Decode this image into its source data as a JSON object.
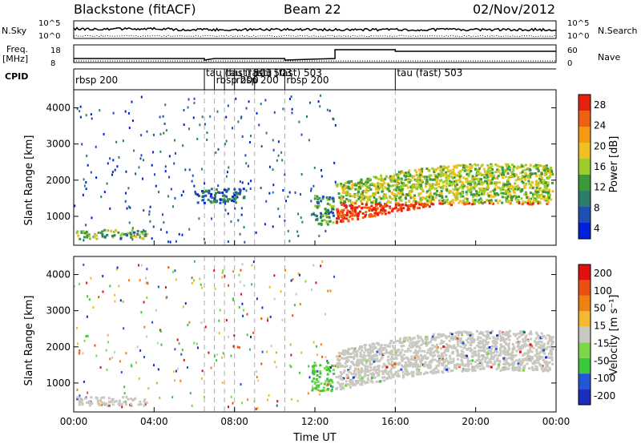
{
  "header": {
    "station": "Blackstone (fitACF)",
    "beam": "Beam 22",
    "date": "02/Nov/2012"
  },
  "strip_labels": {
    "nsky": "N.Sky",
    "nsearch": "N.Search",
    "freq": "Freq.",
    "freq_unit": "[MHz]",
    "nave": "Nave",
    "cpid": "CPID",
    "nsky_ticks": [
      "10^5",
      "10^0"
    ],
    "freq_ticks": [
      "18",
      "8"
    ],
    "nave_ticks": [
      "60",
      "0"
    ]
  },
  "cpid_segments": [
    {
      "label": "rbsp 200",
      "hour": 0.0
    },
    {
      "label": "tau (fast) 503",
      "hour": 6.5
    },
    {
      "label": "rbsp 200",
      "hour": 7.0
    },
    {
      "label": "tau (fast) 503",
      "hour": 7.5
    },
    {
      "label": "rbsp 200",
      "hour": 8.0
    },
    {
      "label": "tau (fast) 503",
      "hour": 9.0
    },
    {
      "label": "rbsp 200",
      "hour": 10.5
    },
    {
      "label": "tau (fast) 503",
      "hour": 16.0
    }
  ],
  "colors": {
    "power": [
      "#0022dd",
      "#1f4fb3",
      "#2e7d6b",
      "#3a9a3a",
      "#9ccc2a",
      "#f0c020",
      "#f59a10",
      "#f06010",
      "#e82010"
    ],
    "velocity": [
      "#1a2ec0",
      "#2456d8",
      "#3cc83c",
      "#7cd84a",
      "#c8c8c0",
      "#f5b830",
      "#f08010",
      "#ec5010",
      "#e01010"
    ],
    "velocity_ground": "#c8c8c0"
  },
  "chart_data": [
    {
      "type": "heatmap",
      "title": "Blackstone (fitACF)",
      "xlabel": "Time UT",
      "ylabel": "Slant Range [km]",
      "xlim": [
        0,
        24
      ],
      "ylim": [
        200,
        4500
      ],
      "x_tick_labels": [
        "00:00",
        "04:00",
        "08:00",
        "12:00",
        "16:00",
        "20:00",
        "00:00"
      ],
      "y_tick_labels": [
        "1000",
        "2000",
        "3000",
        "4000"
      ],
      "colorbar_label": "Power [dB]",
      "colorbar_ticks": [
        "4",
        "8",
        "12",
        "16",
        "20",
        "24",
        "28"
      ],
      "colorbar_range": [
        0,
        30
      ],
      "regions": [
        {
          "name": "near-range echoes",
          "t0": 0.1,
          "t1": 3.6,
          "r0": 400,
          "r1": 650,
          "value": 12
        },
        {
          "name": "evening F-region echoes",
          "t0": 13.0,
          "t1": 23.8,
          "r0": 900,
          "r1": 2600,
          "value": 20
        },
        {
          "name": "post-midnight band",
          "t0": 6.0,
          "t1": 8.5,
          "r0": 1400,
          "r1": 1800,
          "value": 6
        },
        {
          "name": "noon echoes",
          "t0": 11.8,
          "t1": 12.9,
          "r0": 800,
          "r1": 1600,
          "value": 10
        }
      ]
    },
    {
      "type": "heatmap",
      "title": "Beam 22",
      "xlabel": "Time UT",
      "ylabel": "Slant Range [km]",
      "xlim": [
        0,
        24
      ],
      "ylim": [
        200,
        4500
      ],
      "x_tick_labels": [
        "00:00",
        "04:00",
        "08:00",
        "12:00",
        "16:00",
        "20:00",
        "00:00"
      ],
      "y_tick_labels": [
        "1000",
        "2000",
        "3000",
        "4000"
      ],
      "colorbar_label": "Velocity [m s⁻¹]",
      "colorbar_ticks": [
        "200",
        "100",
        "50",
        "15",
        "-15",
        "-50",
        "-100",
        "-200"
      ],
      "colorbar_range": [
        -250,
        250
      ],
      "regions": [
        {
          "name": "near-range ground scatter",
          "t0": 0.1,
          "t1": 3.6,
          "r0": 400,
          "r1": 650,
          "value": 0
        },
        {
          "name": "evening ground scatter",
          "t0": 13.0,
          "t1": 23.8,
          "r0": 900,
          "r1": 2600,
          "value": 0
        },
        {
          "name": "noon positive velocity",
          "t0": 11.8,
          "t1": 12.9,
          "r0": 800,
          "r1": 1600,
          "value": 60
        }
      ]
    }
  ]
}
